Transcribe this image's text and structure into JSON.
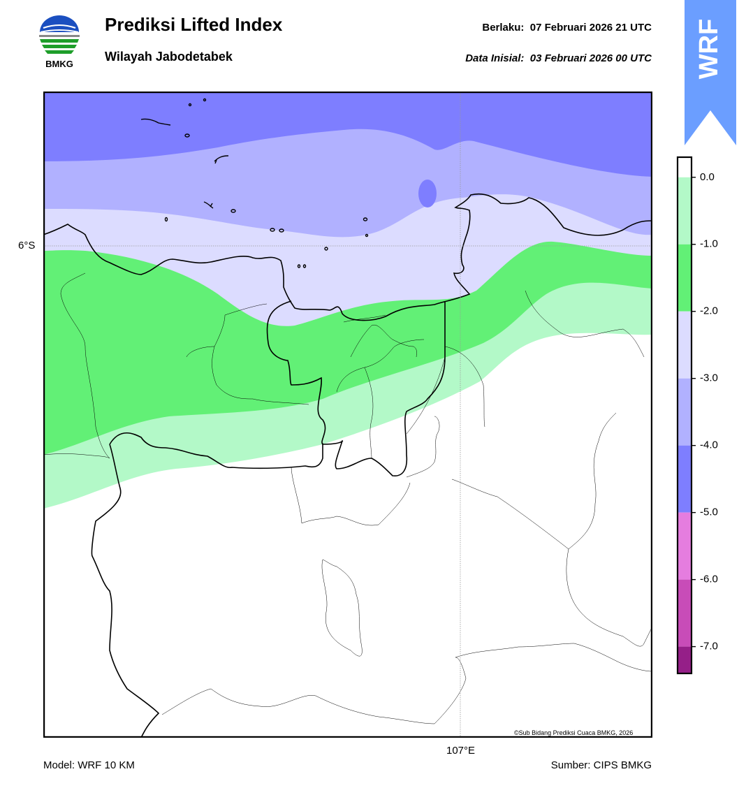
{
  "header": {
    "title": "Prediksi Lifted Index",
    "subtitle": "Wilayah Jabodetabek",
    "valid_label": "Berlaku:",
    "valid_time": "07 Februari 2026 21 UTC",
    "init_label": "Data Inisial:",
    "init_time": "03 Februari 2026 00 UTC"
  },
  "logo": {
    "text": "BMKG"
  },
  "ribbon": {
    "text": "WRF",
    "color": "#6b9eff"
  },
  "map": {
    "lat_label": "6°S",
    "lon_label": "107°E",
    "credit": "©Sub Bidang Prediksi Cuaca BMKG, 2026"
  },
  "footer": {
    "model": "Model: WRF 10 KM",
    "source": "Sumber: CIPS BMKG"
  },
  "legend": {
    "ticks": [
      "0.0",
      "-1.0",
      "-2.0",
      "-3.0",
      "-4.0",
      "-5.0",
      "-6.0",
      "-7.0"
    ],
    "bins": [
      {
        "min": -0.3,
        "max": 0.3,
        "color": "#ffffff"
      },
      {
        "min": -1.0,
        "max": 0.0,
        "color": "#b3f9c8"
      },
      {
        "min": -2.0,
        "max": -1.0,
        "color": "#62f076"
      },
      {
        "min": -3.0,
        "max": -2.0,
        "color": "#dcdcff"
      },
      {
        "min": -4.0,
        "max": -3.0,
        "color": "#b1b1ff"
      },
      {
        "min": -5.0,
        "max": -4.0,
        "color": "#7e7eff"
      },
      {
        "min": -6.0,
        "max": -5.0,
        "color": "#e57ddf"
      },
      {
        "min": -7.0,
        "max": -6.0,
        "color": "#c84cb8"
      },
      {
        "min": -7.4,
        "max": -7.0,
        "color": "#951f88"
      }
    ]
  }
}
